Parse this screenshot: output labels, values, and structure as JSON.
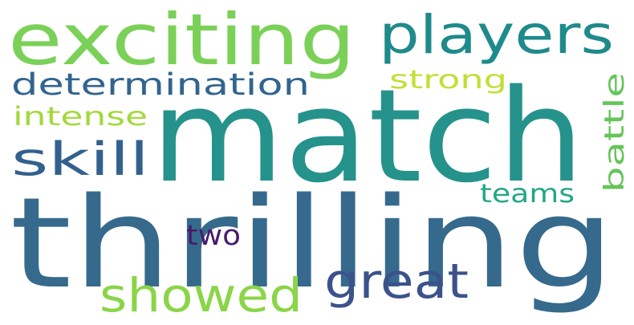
{
  "word_cloud": {
    "words": [
      {
        "text": "match",
        "color": "#26928c"
      },
      {
        "text": "thrilling",
        "color": "#366a8c"
      },
      {
        "text": "exciting",
        "color": "#7bd157"
      },
      {
        "text": "players",
        "color": "#1f8a8b"
      },
      {
        "text": "determination",
        "color": "#32648e"
      },
      {
        "text": "strong",
        "color": "#c4de35"
      },
      {
        "text": "intense",
        "color": "#a3d93a"
      },
      {
        "text": "skill",
        "color": "#33618d"
      },
      {
        "text": "battle",
        "color": "#66c45a"
      },
      {
        "text": "teams",
        "color": "#22a884"
      },
      {
        "text": "two",
        "color": "#481a6c"
      },
      {
        "text": "showed",
        "color": "#8ad548"
      },
      {
        "text": "great",
        "color": "#3b528b"
      }
    ]
  }
}
